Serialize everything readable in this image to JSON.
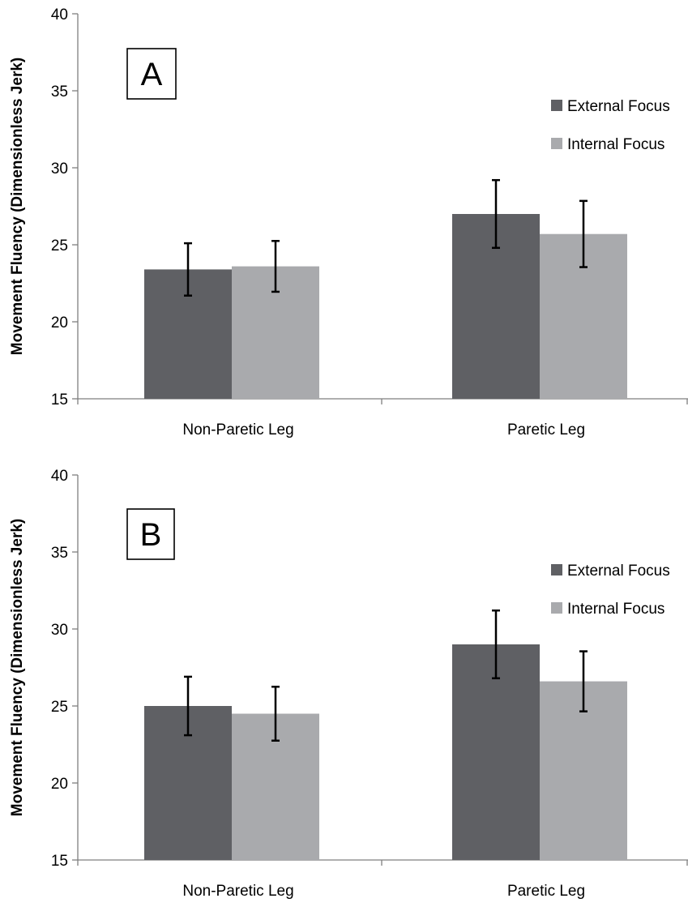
{
  "chart_data": [
    {
      "type": "bar",
      "panel_label": "A",
      "categories": [
        "Non-Paretic Leg",
        "Paretic Leg"
      ],
      "series": [
        {
          "name": "External Focus",
          "color": "#5f6064",
          "values": [
            23.4,
            27.0
          ],
          "error": [
            1.7,
            2.2
          ]
        },
        {
          "name": "Internal Focus",
          "color": "#a9aaad",
          "values": [
            23.6,
            25.7
          ],
          "error": [
            1.65,
            2.15
          ]
        }
      ],
      "ylabel": "Movement Fluency (Dimensionless Jerk)",
      "xlabel": "",
      "ylim": [
        15,
        40
      ],
      "yticks": [
        15,
        20,
        25,
        30,
        35,
        40
      ],
      "grid": false,
      "legend_position": "top-right"
    },
    {
      "type": "bar",
      "panel_label": "B",
      "categories": [
        "Non-Paretic Leg",
        "Paretic Leg"
      ],
      "series": [
        {
          "name": "External Focus",
          "color": "#5f6064",
          "values": [
            25.0,
            29.0
          ],
          "error": [
            1.9,
            2.2
          ]
        },
        {
          "name": "Internal Focus",
          "color": "#a9aaad",
          "values": [
            24.5,
            26.6
          ],
          "error": [
            1.75,
            1.95
          ]
        }
      ],
      "ylabel": "Movement Fluency (Dimensionless Jerk)",
      "xlabel": "",
      "ylim": [
        15,
        40
      ],
      "yticks": [
        15,
        20,
        25,
        30,
        35,
        40
      ],
      "grid": false,
      "legend_position": "top-right"
    }
  ]
}
